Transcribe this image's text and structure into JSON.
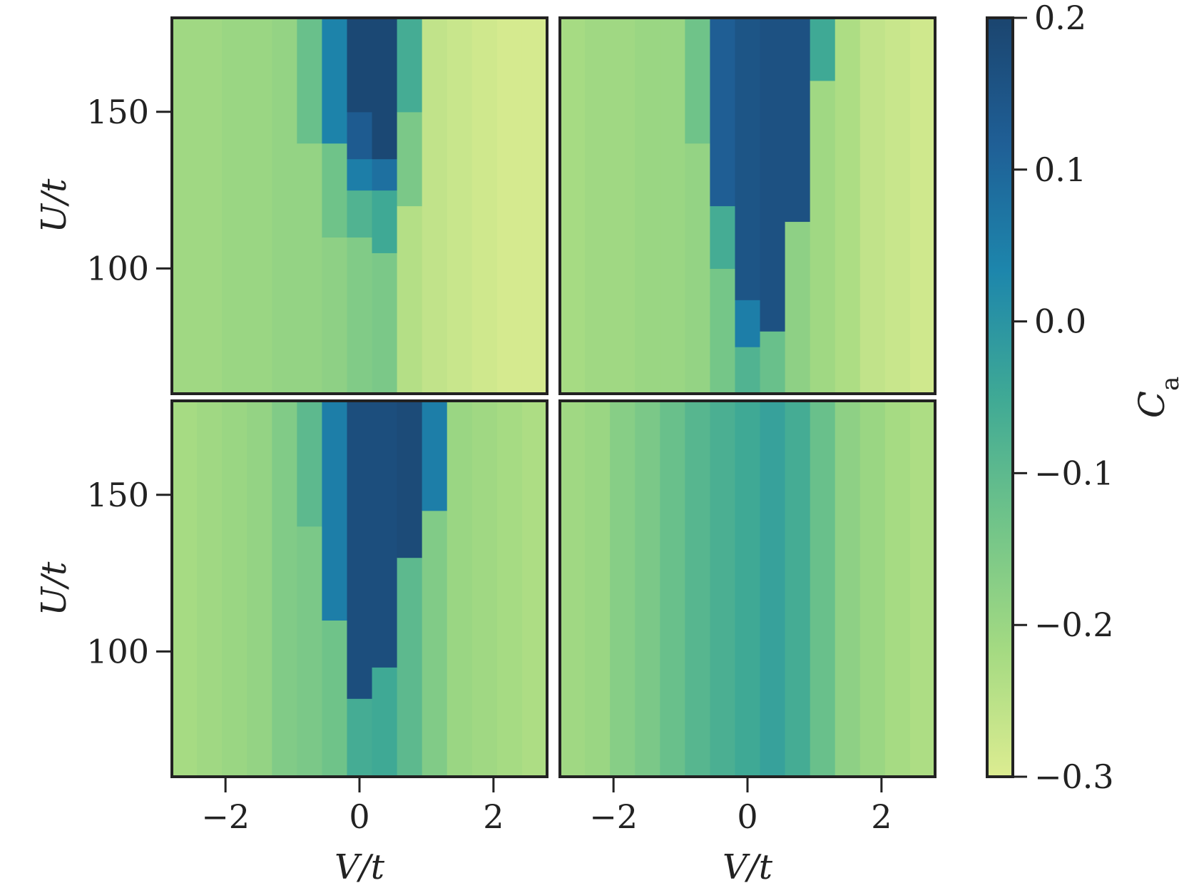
{
  "chart_data": [
    {
      "type": "heatmap",
      "panel": "top-left",
      "x_range": [
        -2.8,
        2.8
      ],
      "y_range": [
        60,
        180
      ],
      "xlabel": "",
      "ylabel": "U/t",
      "x_ticks": [
        "−2",
        "0",
        "2"
      ],
      "y_ticks": [
        "100",
        "150"
      ],
      "x_tick_values": [
        -2,
        0,
        2
      ],
      "y_tick_values": [
        100,
        150
      ],
      "columns": [
        {
          "x": -2.6,
          "segments": [
            {
              "from": 60,
              "to": 180,
              "value": -0.21
            }
          ]
        },
        {
          "x": -2.2,
          "segments": [
            {
              "from": 60,
              "to": 180,
              "value": -0.21
            }
          ]
        },
        {
          "x": -1.8,
          "segments": [
            {
              "from": 60,
              "to": 180,
              "value": -0.2
            }
          ]
        },
        {
          "x": -1.5,
          "segments": [
            {
              "from": 60,
              "to": 180,
              "value": -0.2
            }
          ]
        },
        {
          "x": -1.1,
          "segments": [
            {
              "from": 60,
              "to": 180,
              "value": -0.19
            }
          ]
        },
        {
          "x": -0.7,
          "segments": [
            {
              "from": 60,
              "to": 140,
              "value": -0.19
            },
            {
              "from": 140,
              "to": 180,
              "value": -0.12
            }
          ]
        },
        {
          "x": -0.4,
          "segments": [
            {
              "from": 60,
              "to": 110,
              "value": -0.18
            },
            {
              "from": 110,
              "to": 140,
              "value": -0.13
            },
            {
              "from": 140,
              "to": 180,
              "value": 0.04
            }
          ]
        },
        {
          "x": 0.0,
          "segments": [
            {
              "from": 60,
              "to": 110,
              "value": -0.16
            },
            {
              "from": 110,
              "to": 125,
              "value": -0.08
            },
            {
              "from": 125,
              "to": 135,
              "value": 0.05
            },
            {
              "from": 135,
              "to": 150,
              "value": 0.13
            },
            {
              "from": 150,
              "to": 180,
              "value": 0.19
            }
          ]
        },
        {
          "x": 0.4,
          "segments": [
            {
              "from": 60,
              "to": 105,
              "value": -0.15
            },
            {
              "from": 105,
              "to": 125,
              "value": -0.05
            },
            {
              "from": 125,
              "to": 135,
              "value": 0.08
            },
            {
              "from": 135,
              "to": 180,
              "value": 0.19
            }
          ]
        },
        {
          "x": 0.7,
          "segments": [
            {
              "from": 60,
              "to": 120,
              "value": -0.24
            },
            {
              "from": 120,
              "to": 150,
              "value": -0.15
            },
            {
              "from": 150,
              "to": 180,
              "value": -0.06
            }
          ]
        },
        {
          "x": 1.1,
          "segments": [
            {
              "from": 60,
              "to": 180,
              "value": -0.26
            }
          ]
        },
        {
          "x": 1.5,
          "segments": [
            {
              "from": 60,
              "to": 180,
              "value": -0.27
            }
          ]
        },
        {
          "x": 1.8,
          "segments": [
            {
              "from": 60,
              "to": 180,
              "value": -0.28
            }
          ]
        },
        {
          "x": 2.2,
          "segments": [
            {
              "from": 60,
              "to": 180,
              "value": -0.29
            }
          ]
        },
        {
          "x": 2.6,
          "segments": [
            {
              "from": 60,
              "to": 180,
              "value": -0.29
            }
          ]
        }
      ]
    },
    {
      "type": "heatmap",
      "panel": "top-right",
      "x_range": [
        -2.8,
        2.8
      ],
      "y_range": [
        60,
        180
      ],
      "xlabel": "",
      "ylabel": "",
      "x_ticks": [
        "−2",
        "0",
        "2"
      ],
      "y_ticks": [
        "100",
        "150"
      ],
      "x_tick_values": [
        -2,
        0,
        2
      ],
      "y_tick_values": [
        100,
        150
      ],
      "columns": [
        {
          "x": -2.6,
          "segments": [
            {
              "from": 60,
              "to": 180,
              "value": -0.22
            }
          ]
        },
        {
          "x": -2.2,
          "segments": [
            {
              "from": 60,
              "to": 180,
              "value": -0.21
            }
          ]
        },
        {
          "x": -1.8,
          "segments": [
            {
              "from": 60,
              "to": 180,
              "value": -0.21
            }
          ]
        },
        {
          "x": -1.5,
          "segments": [
            {
              "from": 60,
              "to": 180,
              "value": -0.2
            }
          ]
        },
        {
          "x": -1.1,
          "segments": [
            {
              "from": 60,
              "to": 180,
              "value": -0.2
            }
          ]
        },
        {
          "x": -0.7,
          "segments": [
            {
              "from": 60,
              "to": 140,
              "value": -0.19
            },
            {
              "from": 140,
              "to": 180,
              "value": -0.13
            }
          ]
        },
        {
          "x": -0.4,
          "segments": [
            {
              "from": 60,
              "to": 100,
              "value": -0.14
            },
            {
              "from": 100,
              "to": 120,
              "value": -0.06
            },
            {
              "from": 120,
              "to": 180,
              "value": 0.12
            }
          ]
        },
        {
          "x": 0.0,
          "segments": [
            {
              "from": 60,
              "to": 75,
              "value": -0.08
            },
            {
              "from": 75,
              "to": 90,
              "value": 0.05
            },
            {
              "from": 90,
              "to": 180,
              "value": 0.15
            }
          ]
        },
        {
          "x": 0.4,
          "segments": [
            {
              "from": 60,
              "to": 80,
              "value": -0.12
            },
            {
              "from": 80,
              "to": 180,
              "value": 0.16
            }
          ]
        },
        {
          "x": 0.7,
          "segments": [
            {
              "from": 60,
              "to": 115,
              "value": -0.18
            },
            {
              "from": 115,
              "to": 180,
              "value": 0.16
            }
          ]
        },
        {
          "x": 1.1,
          "segments": [
            {
              "from": 60,
              "to": 160,
              "value": -0.21
            },
            {
              "from": 160,
              "to": 180,
              "value": -0.05
            }
          ]
        },
        {
          "x": 1.5,
          "segments": [
            {
              "from": 60,
              "to": 180,
              "value": -0.23
            }
          ]
        },
        {
          "x": 1.8,
          "segments": [
            {
              "from": 60,
              "to": 180,
              "value": -0.26
            }
          ]
        },
        {
          "x": 2.2,
          "segments": [
            {
              "from": 60,
              "to": 180,
              "value": -0.27
            }
          ]
        },
        {
          "x": 2.6,
          "segments": [
            {
              "from": 60,
              "to": 180,
              "value": -0.28
            }
          ]
        }
      ]
    },
    {
      "type": "heatmap",
      "panel": "bottom-left",
      "x_range": [
        -2.8,
        2.8
      ],
      "y_range": [
        60,
        180
      ],
      "xlabel": "V/t",
      "ylabel": "U/t",
      "x_ticks": [
        "−2",
        "0",
        "2"
      ],
      "y_ticks": [
        "100",
        "150"
      ],
      "x_tick_values": [
        -2,
        0,
        2
      ],
      "y_tick_values": [
        100,
        150
      ],
      "columns": [
        {
          "x": -2.6,
          "segments": [
            {
              "from": 60,
              "to": 180,
              "value": -0.22
            }
          ]
        },
        {
          "x": -2.2,
          "segments": [
            {
              "from": 60,
              "to": 180,
              "value": -0.21
            }
          ]
        },
        {
          "x": -1.8,
          "segments": [
            {
              "from": 60,
              "to": 180,
              "value": -0.2
            }
          ]
        },
        {
          "x": -1.5,
          "segments": [
            {
              "from": 60,
              "to": 180,
              "value": -0.19
            }
          ]
        },
        {
          "x": -1.1,
          "segments": [
            {
              "from": 60,
              "to": 180,
              "value": -0.16
            }
          ]
        },
        {
          "x": -0.7,
          "segments": [
            {
              "from": 60,
              "to": 140,
              "value": -0.15
            },
            {
              "from": 140,
              "to": 180,
              "value": -0.1
            }
          ]
        },
        {
          "x": -0.4,
          "segments": [
            {
              "from": 60,
              "to": 110,
              "value": -0.13
            },
            {
              "from": 110,
              "to": 180,
              "value": 0.05
            }
          ]
        },
        {
          "x": 0.0,
          "segments": [
            {
              "from": 60,
              "to": 85,
              "value": -0.06
            },
            {
              "from": 85,
              "to": 180,
              "value": 0.17
            }
          ]
        },
        {
          "x": 0.4,
          "segments": [
            {
              "from": 60,
              "to": 95,
              "value": -0.05
            },
            {
              "from": 95,
              "to": 180,
              "value": 0.17
            }
          ]
        },
        {
          "x": 0.7,
          "segments": [
            {
              "from": 60,
              "to": 130,
              "value": -0.1
            },
            {
              "from": 130,
              "to": 180,
              "value": 0.18
            }
          ]
        },
        {
          "x": 1.1,
          "segments": [
            {
              "from": 60,
              "to": 145,
              "value": -0.16
            },
            {
              "from": 145,
              "to": 180,
              "value": 0.05
            }
          ]
        },
        {
          "x": 1.5,
          "segments": [
            {
              "from": 60,
              "to": 180,
              "value": -0.2
            }
          ]
        },
        {
          "x": 1.8,
          "segments": [
            {
              "from": 60,
              "to": 180,
              "value": -0.21
            }
          ]
        },
        {
          "x": 2.2,
          "segments": [
            {
              "from": 60,
              "to": 180,
              "value": -0.22
            }
          ]
        },
        {
          "x": 2.6,
          "segments": [
            {
              "from": 60,
              "to": 180,
              "value": -0.23
            }
          ]
        }
      ]
    },
    {
      "type": "heatmap",
      "panel": "bottom-right",
      "x_range": [
        -2.8,
        2.8
      ],
      "y_range": [
        60,
        180
      ],
      "xlabel": "V/t",
      "ylabel": "",
      "x_ticks": [
        "−2",
        "0",
        "2"
      ],
      "y_ticks": [
        "100",
        "150"
      ],
      "x_tick_values": [
        -2,
        0,
        2
      ],
      "y_tick_values": [
        100,
        150
      ],
      "columns": [
        {
          "x": -2.6,
          "segments": [
            {
              "from": 60,
              "to": 180,
              "value": -0.21
            }
          ]
        },
        {
          "x": -2.2,
          "segments": [
            {
              "from": 60,
              "to": 180,
              "value": -0.2
            }
          ]
        },
        {
          "x": -1.8,
          "segments": [
            {
              "from": 60,
              "to": 180,
              "value": -0.17
            }
          ]
        },
        {
          "x": -1.5,
          "segments": [
            {
              "from": 60,
              "to": 180,
              "value": -0.15
            }
          ]
        },
        {
          "x": -1.1,
          "segments": [
            {
              "from": 60,
              "to": 180,
              "value": -0.12
            }
          ]
        },
        {
          "x": -0.7,
          "segments": [
            {
              "from": 60,
              "to": 180,
              "value": -0.09
            }
          ]
        },
        {
          "x": -0.4,
          "segments": [
            {
              "from": 60,
              "to": 180,
              "value": -0.07
            }
          ]
        },
        {
          "x": 0.0,
          "segments": [
            {
              "from": 60,
              "to": 180,
              "value": -0.05
            }
          ]
        },
        {
          "x": 0.4,
          "segments": [
            {
              "from": 60,
              "to": 180,
              "value": -0.03
            }
          ]
        },
        {
          "x": 0.7,
          "segments": [
            {
              "from": 60,
              "to": 180,
              "value": -0.06
            }
          ]
        },
        {
          "x": 1.1,
          "segments": [
            {
              "from": 60,
              "to": 180,
              "value": -0.12
            }
          ]
        },
        {
          "x": 1.5,
          "segments": [
            {
              "from": 60,
              "to": 180,
              "value": -0.18
            }
          ]
        },
        {
          "x": 1.8,
          "segments": [
            {
              "from": 60,
              "to": 180,
              "value": -0.2
            }
          ]
        },
        {
          "x": 2.2,
          "segments": [
            {
              "from": 60,
              "to": 180,
              "value": -0.22
            }
          ]
        },
        {
          "x": 2.6,
          "segments": [
            {
              "from": 60,
              "to": 180,
              "value": -0.23
            }
          ]
        }
      ]
    }
  ],
  "colorbar": {
    "label": "C",
    "label_subscript": "a",
    "range": [
      -0.3,
      0.2
    ],
    "ticks": [
      {
        "value": 0.2,
        "label": "0.2"
      },
      {
        "value": 0.1,
        "label": "0.1"
      },
      {
        "value": 0.0,
        "label": "0.0"
      },
      {
        "value": -0.1,
        "label": "−0.1"
      },
      {
        "value": -0.2,
        "label": "−0.2"
      },
      {
        "value": -0.3,
        "label": "−0.3"
      }
    ],
    "colormap": [
      "#dcec91",
      "#a4da82",
      "#71c489",
      "#3fa995",
      "#1d86ac",
      "#1f5f96",
      "#1b456f"
    ]
  }
}
